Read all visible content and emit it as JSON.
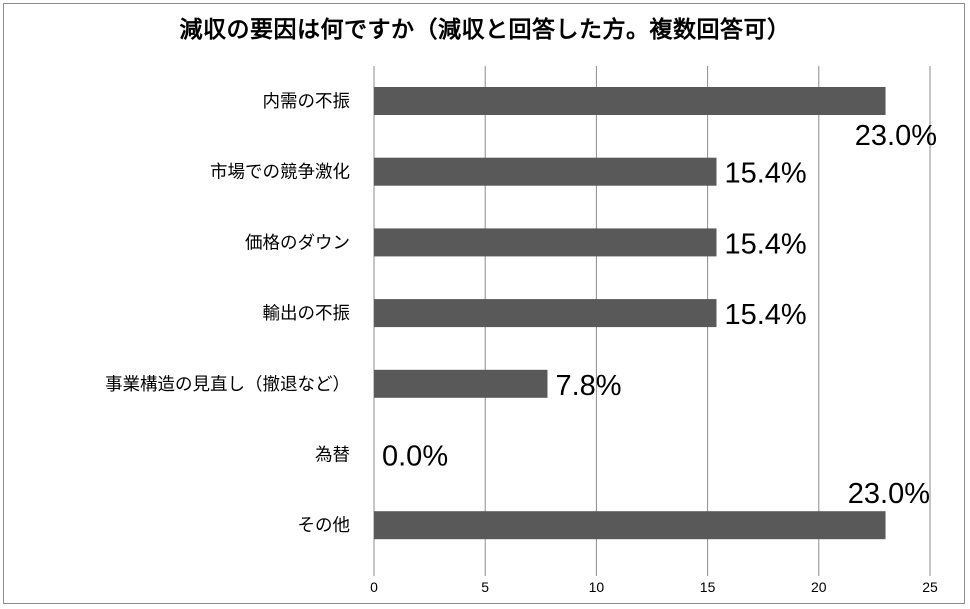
{
  "chart_data": {
    "type": "bar",
    "orientation": "horizontal",
    "title": "減収の要因は何ですか（減収と回答した方。複数回答可）",
    "categories": [
      "内需の不振",
      "市場での競争激化",
      "価格のダウン",
      "輸出の不振",
      "事業構造の見直し（撤退など）",
      "為替",
      "その他"
    ],
    "values": [
      23.0,
      15.4,
      15.4,
      15.4,
      7.8,
      0.0,
      23.0
    ],
    "data_labels": [
      "23.0%",
      "15.4%",
      "15.4%",
      "15.4%",
      "7.8%",
      "0.0%",
      "23.0%"
    ],
    "xlim": [
      0,
      25
    ],
    "xticks": [
      0,
      5,
      10,
      15,
      20,
      25
    ],
    "xlabel": "",
    "ylabel": "",
    "grid": "vertical",
    "legend": "none",
    "colors": {
      "bar": "#595959",
      "grid": "#8c8c8c",
      "border": "#8c8c8c"
    }
  }
}
